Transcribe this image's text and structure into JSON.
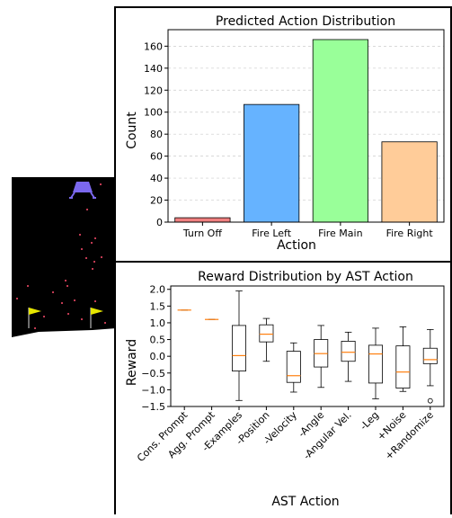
{
  "game": {
    "lander_color": "#7b68ee",
    "flag_color": "#e6e600",
    "star_color": "#ff4d6d",
    "background": "#000000",
    "ground_color": "#ffffff"
  },
  "chart_data": [
    {
      "type": "bar",
      "title": "Predicted Action Distribution",
      "xlabel": "Action",
      "ylabel": "Count",
      "categories": [
        "Turn Off",
        "Fire Left",
        "Fire Main",
        "Fire Right"
      ],
      "values": [
        4,
        107,
        166,
        73
      ],
      "colors": [
        "#f08080",
        "#66b3ff",
        "#99ff99",
        "#ffcc99"
      ],
      "ylim": [
        0,
        175
      ],
      "yticks": [
        0,
        20,
        40,
        60,
        80,
        100,
        120,
        140,
        160
      ],
      "grid": "horizontal"
    },
    {
      "type": "box",
      "title": "Reward Distribution by AST Action",
      "xlabel": "AST Action",
      "ylabel": "Reward",
      "categories": [
        "Cons. Prompt",
        "Agg. Prompt",
        "-Examples",
        "-Position",
        "-Velocity",
        "-Angle",
        "-Angular Vel.",
        "-Leg",
        "+Noise",
        "+Randomize"
      ],
      "ylim": [
        -1.5,
        2.1
      ],
      "yticks": [
        -1.5,
        -1.0,
        -0.5,
        0.0,
        0.5,
        1.0,
        1.5,
        2.0
      ],
      "ytick_labels": [
        "−1.5",
        "−1.0",
        "−0.5",
        "0.0",
        "0.5",
        "1.0",
        "1.5",
        "2.0"
      ],
      "median_color": "#ff7f0e",
      "boxes": [
        {
          "min": 1.38,
          "q1": 1.38,
          "median": 1.38,
          "q3": 1.38,
          "max": 1.38,
          "outliers": []
        },
        {
          "min": 1.1,
          "q1": 1.1,
          "median": 1.1,
          "q3": 1.1,
          "max": 1.1,
          "outliers": []
        },
        {
          "min": -1.32,
          "q1": -0.44,
          "median": 0.02,
          "q3": 0.92,
          "max": 1.95,
          "outliers": []
        },
        {
          "min": -0.15,
          "q1": 0.43,
          "median": 0.66,
          "q3": 0.94,
          "max": 1.13,
          "outliers": []
        },
        {
          "min": -1.07,
          "q1": -0.78,
          "median": -0.58,
          "q3": 0.15,
          "max": 0.4,
          "outliers": []
        },
        {
          "min": -0.93,
          "q1": -0.32,
          "median": 0.08,
          "q3": 0.5,
          "max": 0.92,
          "outliers": []
        },
        {
          "min": -0.75,
          "q1": -0.15,
          "median": 0.12,
          "q3": 0.45,
          "max": 0.72,
          "outliers": []
        },
        {
          "min": -1.27,
          "q1": -0.8,
          "median": 0.07,
          "q3": 0.33,
          "max": 0.84,
          "outliers": []
        },
        {
          "min": -1.05,
          "q1": -0.95,
          "median": -0.47,
          "q3": 0.31,
          "max": 0.88,
          "outliers": []
        },
        {
          "min": -0.88,
          "q1": -0.22,
          "median": -0.1,
          "q3": 0.24,
          "max": 0.8,
          "outliers": [
            -1.33
          ]
        }
      ]
    }
  ]
}
